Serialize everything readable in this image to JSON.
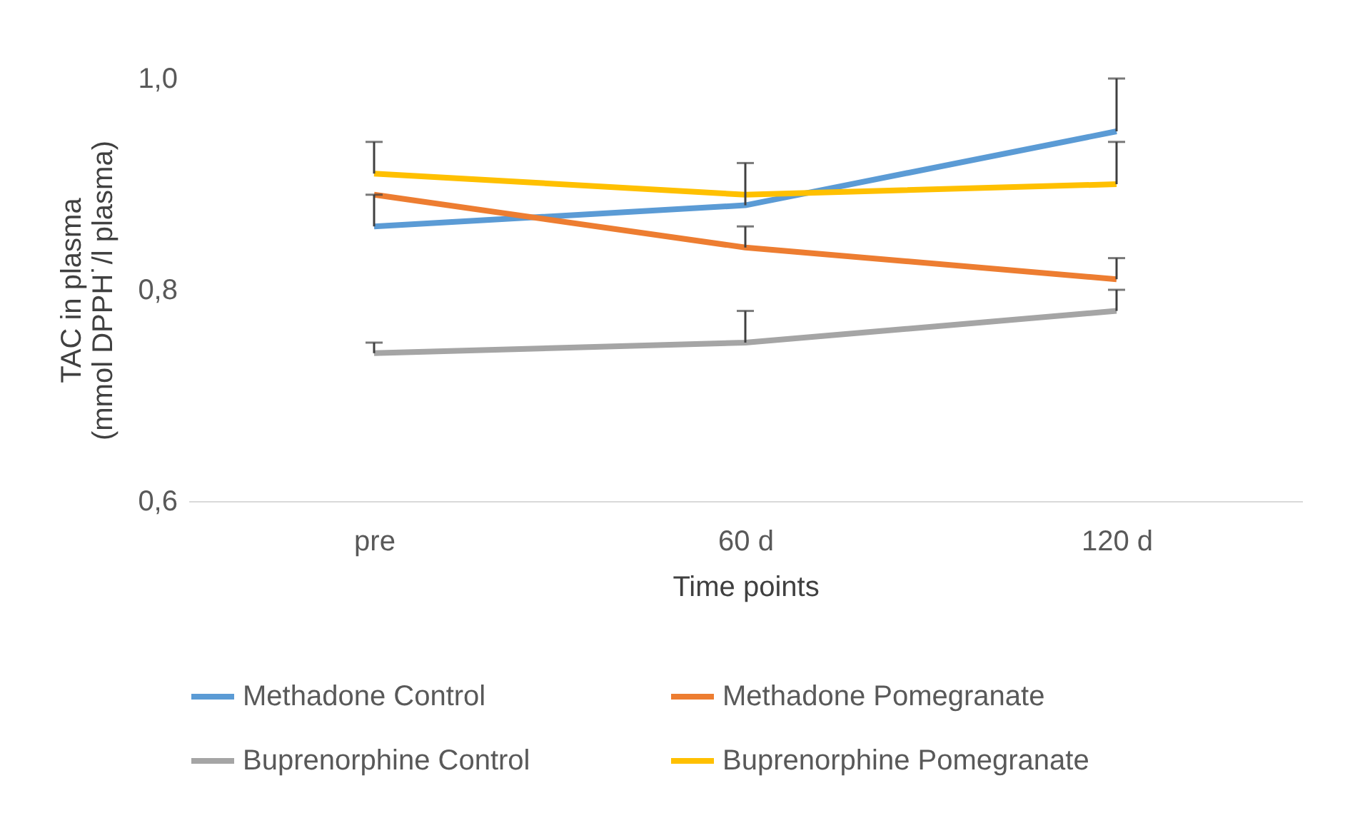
{
  "chart_data": {
    "type": "line",
    "xlabel": "Time points",
    "ylabel": "TAC in plasma\n(mmol DPPH˙/l plasma)",
    "categories": [
      "pre",
      "60 d",
      "120 d"
    ],
    "ylim": [
      0.6,
      1.0
    ],
    "yticks": [
      {
        "value": 0.6,
        "label": "0,6"
      },
      {
        "value": 0.8,
        "label": "0,8"
      },
      {
        "value": 1.0,
        "label": "1,0"
      }
    ],
    "grid": false,
    "legend": "bottom",
    "marker": "none",
    "line_style": "solid",
    "series": [
      {
        "name": "Methadone Control",
        "color": "#5b9bd5",
        "values": [
          0.86,
          0.88,
          0.95
        ],
        "errors": [
          [
            0.86,
            0.89
          ],
          [
            0.88,
            0.92
          ],
          [
            0.95,
            1.0
          ]
        ]
      },
      {
        "name": "Methadone Pomegranate",
        "color": "#ed7d31",
        "values": [
          0.89,
          0.84,
          0.81
        ],
        "errors": [
          null,
          [
            0.84,
            0.86
          ],
          [
            0.81,
            0.83
          ]
        ]
      },
      {
        "name": "Buprenorphine Control",
        "color": "#a5a5a5",
        "values": [
          0.74,
          0.75,
          0.78
        ],
        "errors": [
          [
            0.74,
            0.75
          ],
          [
            0.75,
            0.78
          ],
          [
            0.78,
            0.8
          ]
        ]
      },
      {
        "name": "Buprenorphine Pomegranate",
        "color": "#ffc000",
        "values": [
          0.91,
          0.89,
          0.9
        ],
        "errors": [
          [
            0.91,
            0.94
          ],
          null,
          [
            0.9,
            0.94
          ]
        ]
      }
    ]
  }
}
